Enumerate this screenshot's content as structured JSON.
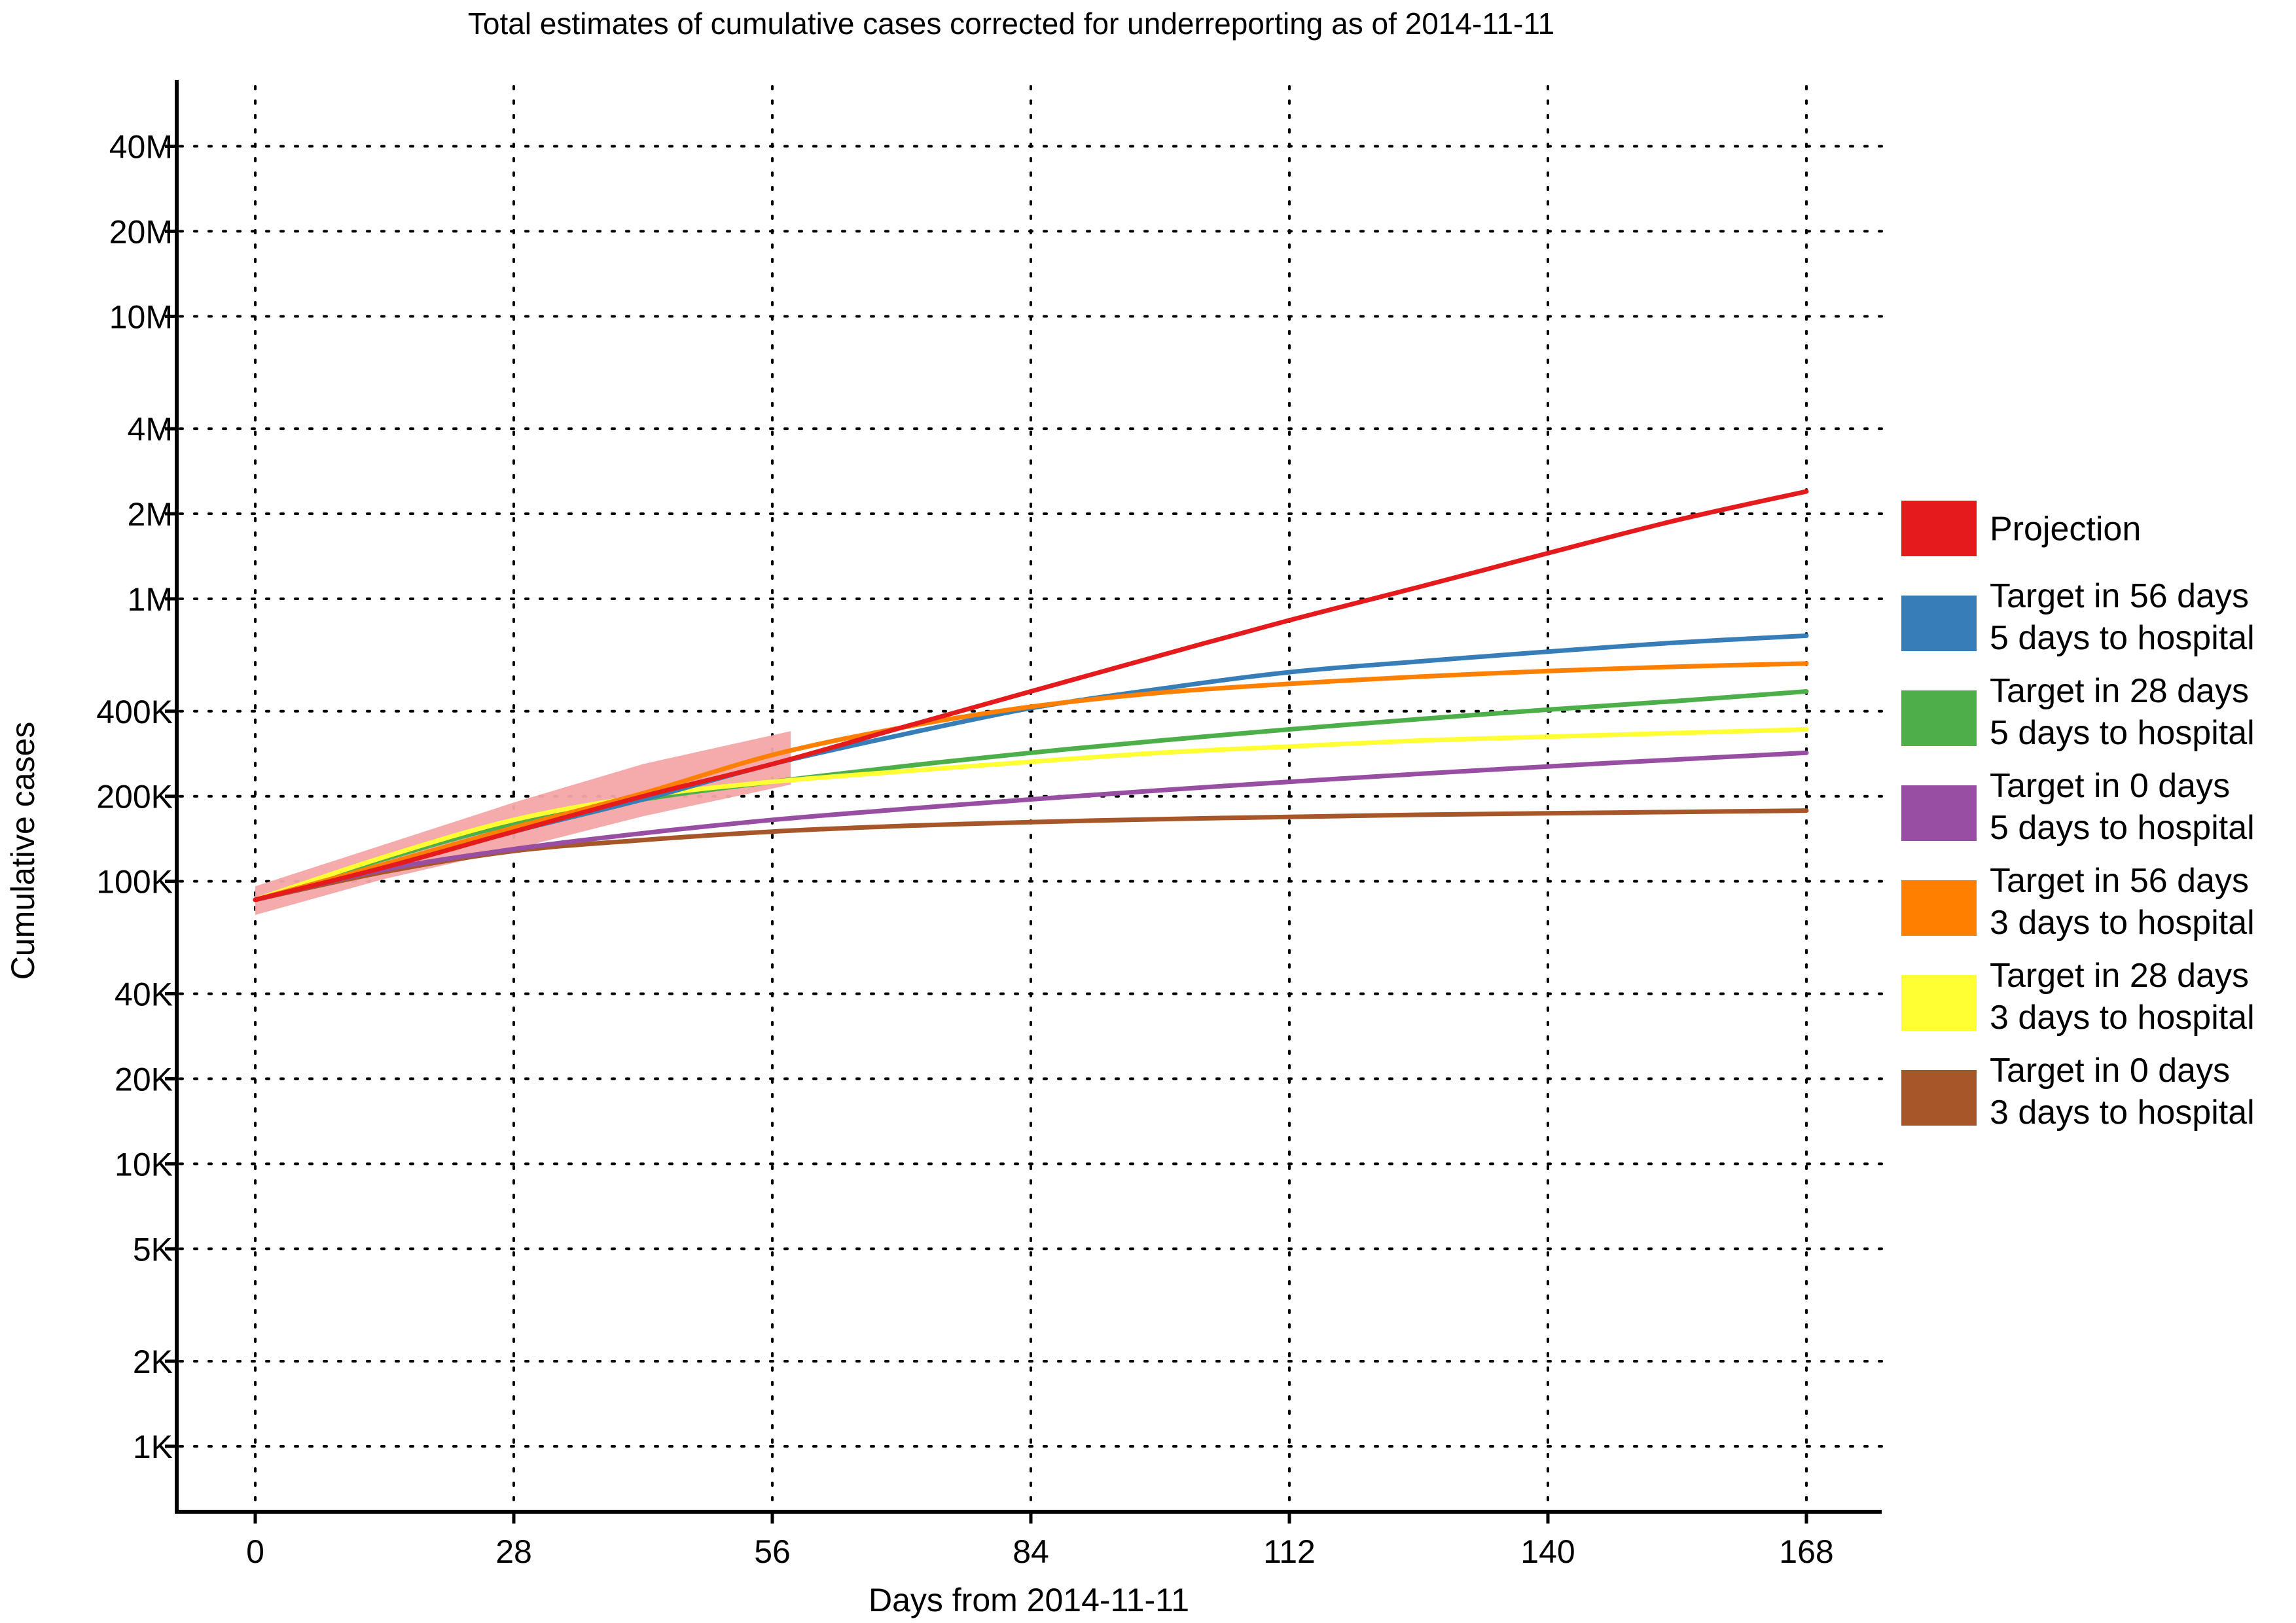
{
  "chart_data": {
    "type": "line",
    "title": "Total estimates of cumulative cases corrected for underreporting as of 2014-11-11",
    "xlabel": "Days from 2014-11-11",
    "ylabel": "Cumulative cases",
    "x_scale": "linear",
    "y_scale": "log",
    "xlim": [
      -8,
      176
    ],
    "ylim": [
      500,
      70000000
    ],
    "x_ticks": [
      0,
      28,
      56,
      84,
      112,
      140,
      168
    ],
    "x_tick_labels": [
      "0",
      "28",
      "56",
      "84",
      "112",
      "140",
      "168"
    ],
    "y_ticks": [
      1000,
      2000,
      5000,
      10000,
      20000,
      40000,
      100000,
      200000,
      400000,
      1000000,
      2000000,
      4000000,
      10000000,
      20000000,
      40000000
    ],
    "y_tick_labels": [
      "1K",
      "2K",
      "5K",
      "10K",
      "20K",
      "40K",
      "100K",
      "200K",
      "400K",
      "1M",
      "2M",
      "4M",
      "10M",
      "20M",
      "40M"
    ],
    "grid": true,
    "legend_position": "right",
    "uncertainty_band": {
      "color": "#f4a6a6",
      "x": [
        0,
        14,
        28,
        42,
        58
      ],
      "lower": [
        76000,
        102000,
        130000,
        170000,
        220000
      ],
      "upper": [
        96000,
        135000,
        190000,
        260000,
        340000
      ]
    },
    "series": [
      {
        "name": "Projection",
        "color": "#e41a1c",
        "x": [
          0,
          14,
          28,
          42,
          56,
          70,
          84,
          98,
          112,
          126,
          140,
          154,
          168
        ],
        "values": [
          86000,
          112000,
          150000,
          200000,
          260000,
          350000,
          470000,
          630000,
          840000,
          1100000,
          1450000,
          1900000,
          2400000
        ]
      },
      {
        "name": "Target in 56 days\n5 days to hospital",
        "color": "#377eb8",
        "x": [
          0,
          14,
          28,
          42,
          56,
          70,
          84,
          98,
          112,
          126,
          140,
          154,
          168
        ],
        "values": [
          86000,
          112000,
          150000,
          195000,
          260000,
          330000,
          410000,
          480000,
          550000,
          600000,
          650000,
          700000,
          740000
        ]
      },
      {
        "name": "Target in 28 days\n5 days to hospital",
        "color": "#4daf4a",
        "x": [
          0,
          14,
          28,
          42,
          56,
          70,
          84,
          98,
          112,
          126,
          140,
          154,
          168
        ],
        "values": [
          86000,
          120000,
          160000,
          195000,
          225000,
          255000,
          285000,
          315000,
          345000,
          375000,
          405000,
          435000,
          470000
        ]
      },
      {
        "name": "Target in 0 days\n5 days to hospital",
        "color": "#984ea3",
        "x": [
          0,
          14,
          28,
          42,
          56,
          70,
          84,
          98,
          112,
          126,
          140,
          154,
          168
        ],
        "values": [
          86000,
          110000,
          130000,
          148000,
          165000,
          180000,
          195000,
          210000,
          225000,
          240000,
          255000,
          270000,
          285000
        ]
      },
      {
        "name": "Target in 56 days\n3 days to hospital",
        "color": "#ff7f00",
        "x": [
          0,
          14,
          28,
          42,
          56,
          70,
          84,
          98,
          112,
          126,
          140,
          154,
          168
        ],
        "values": [
          86000,
          115000,
          155000,
          205000,
          280000,
          350000,
          415000,
          465000,
          500000,
          530000,
          555000,
          575000,
          590000
        ]
      },
      {
        "name": "Target in 28 days\n3 days to hospital",
        "color": "#ffff33",
        "x": [
          0,
          14,
          28,
          42,
          56,
          70,
          84,
          98,
          112,
          126,
          140,
          154,
          168
        ],
        "values": [
          86000,
          122000,
          165000,
          200000,
          225000,
          245000,
          265000,
          285000,
          300000,
          315000,
          325000,
          335000,
          345000
        ]
      },
      {
        "name": "Target in 0 days\n3 days to hospital",
        "color": "#a65628",
        "x": [
          0,
          14,
          28,
          42,
          56,
          70,
          84,
          98,
          112,
          126,
          140,
          154,
          168
        ],
        "values": [
          86000,
          108000,
          128000,
          140000,
          150000,
          157000,
          162000,
          166000,
          169000,
          172000,
          174000,
          176000,
          178000
        ]
      }
    ]
  }
}
